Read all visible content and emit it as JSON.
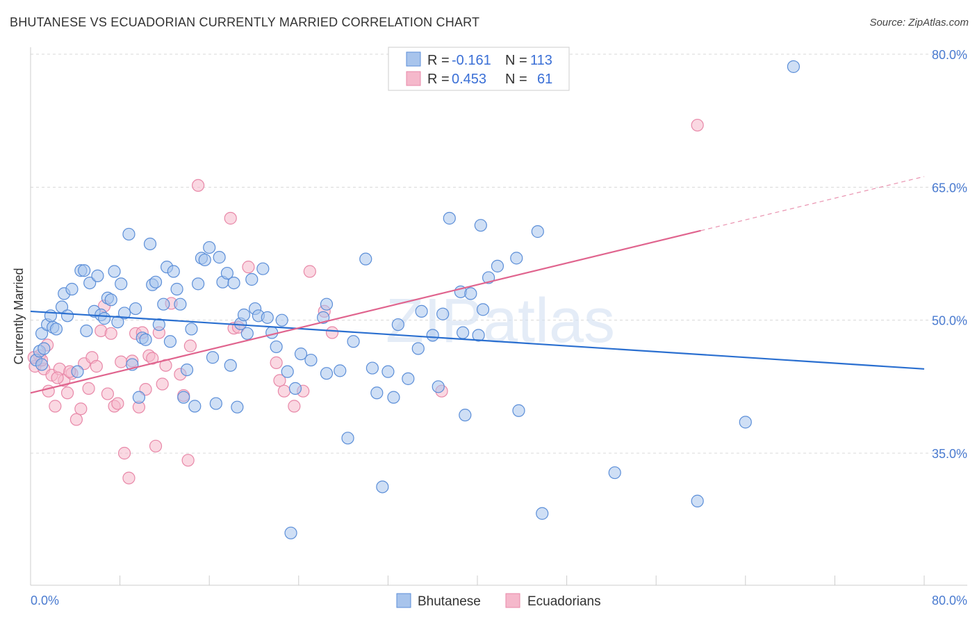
{
  "title": "BHUTANESE VS ECUADORIAN CURRENTLY MARRIED CORRELATION CHART",
  "source": "Source: ZipAtlas.com",
  "watermark": "ZIPatlas",
  "colors": {
    "bhutanese_fill": "#a8c4ec",
    "bhutanese_stroke": "#5b8ed8",
    "bhutanese_line": "#2a6fd0",
    "ecuadorian_fill": "#f5b8cb",
    "ecuadorian_stroke": "#e888a8",
    "ecuadorian_line": "#e0648e",
    "tick_color": "#4a7bd0",
    "grid": "#d8d8d8"
  },
  "legend": {
    "rows": [
      {
        "r_label": "R =",
        "r_value": "-0.161",
        "n_label": "N =",
        "n_value": "113"
      },
      {
        "r_label": "R =",
        "r_value": "0.453",
        "n_label": "N =",
        "n_value": "61"
      }
    ]
  },
  "chart_data": {
    "type": "scatter",
    "title": "BHUTANESE VS ECUADORIAN CURRENTLY MARRIED CORRELATION CHART",
    "xlabel": "",
    "ylabel": "Currently Married",
    "xlim": [
      0,
      80
    ],
    "ylim": [
      22,
      83
    ],
    "x_tick_labels": [
      "0.0%",
      "80.0%"
    ],
    "y_ticks": [
      35,
      50,
      65,
      80
    ],
    "y_tick_labels": [
      "35.0%",
      "50.0%",
      "65.0%",
      "80.0%"
    ],
    "grid": true,
    "legend_position": "bottom",
    "series": [
      {
        "name": "Bhutanese",
        "r": -0.161,
        "n": 113,
        "trend": {
          "x": [
            0,
            80
          ],
          "y": [
            51.0,
            44.5
          ],
          "dashed_from": null
        },
        "points": [
          [
            0.5,
            45.5
          ],
          [
            0.8,
            46.5
          ],
          [
            1.0,
            48.5
          ],
          [
            1.2,
            46.8
          ],
          [
            1.5,
            49.5
          ],
          [
            1.8,
            50.5
          ],
          [
            2.0,
            49.2
          ],
          [
            2.3,
            49.0
          ],
          [
            2.8,
            51.5
          ],
          [
            3.0,
            53.0
          ],
          [
            3.3,
            50.5
          ],
          [
            3.7,
            53.5
          ],
          [
            4.2,
            44.2
          ],
          [
            4.5,
            55.6
          ],
          [
            4.8,
            55.6
          ],
          [
            5.0,
            48.8
          ],
          [
            5.3,
            54.2
          ],
          [
            5.7,
            51.0
          ],
          [
            6.0,
            55.0
          ],
          [
            6.3,
            50.6
          ],
          [
            6.6,
            50.2
          ],
          [
            6.9,
            52.5
          ],
          [
            7.2,
            52.3
          ],
          [
            7.5,
            55.5
          ],
          [
            7.8,
            49.8
          ],
          [
            8.1,
            54.1
          ],
          [
            8.4,
            50.8
          ],
          [
            8.8,
            59.7
          ],
          [
            9.1,
            45.0
          ],
          [
            9.4,
            51.3
          ],
          [
            9.7,
            41.3
          ],
          [
            10.0,
            48.0
          ],
          [
            10.3,
            47.8
          ],
          [
            10.7,
            58.6
          ],
          [
            10.9,
            54.0
          ],
          [
            11.2,
            54.3
          ],
          [
            11.5,
            49.5
          ],
          [
            11.9,
            51.8
          ],
          [
            12.2,
            56.0
          ],
          [
            12.5,
            47.6
          ],
          [
            12.8,
            55.5
          ],
          [
            13.1,
            53.5
          ],
          [
            13.4,
            51.8
          ],
          [
            13.7,
            41.3
          ],
          [
            14.0,
            44.4
          ],
          [
            14.4,
            49.0
          ],
          [
            14.7,
            40.3
          ],
          [
            15.0,
            54.1
          ],
          [
            15.3,
            57.0
          ],
          [
            15.6,
            56.8
          ],
          [
            16.0,
            58.2
          ],
          [
            16.3,
            45.8
          ],
          [
            16.6,
            40.6
          ],
          [
            16.9,
            57.1
          ],
          [
            17.2,
            54.3
          ],
          [
            17.6,
            55.3
          ],
          [
            17.9,
            44.9
          ],
          [
            18.2,
            54.2
          ],
          [
            18.5,
            40.2
          ],
          [
            18.8,
            49.6
          ],
          [
            19.1,
            50.6
          ],
          [
            19.4,
            48.5
          ],
          [
            19.8,
            54.6
          ],
          [
            20.1,
            51.3
          ],
          [
            20.4,
            50.5
          ],
          [
            20.8,
            55.8
          ],
          [
            21.2,
            50.3
          ],
          [
            21.6,
            48.6
          ],
          [
            22.0,
            47.0
          ],
          [
            22.5,
            50.0
          ],
          [
            23.0,
            44.2
          ],
          [
            23.3,
            26.0
          ],
          [
            23.7,
            42.3
          ],
          [
            24.2,
            46.2
          ],
          [
            25.1,
            45.5
          ],
          [
            26.5,
            51.8
          ],
          [
            26.2,
            50.3
          ],
          [
            26.5,
            44.0
          ],
          [
            27.7,
            44.3
          ],
          [
            28.4,
            36.7
          ],
          [
            28.9,
            47.6
          ],
          [
            30.0,
            56.9
          ],
          [
            30.6,
            44.6
          ],
          [
            31.0,
            41.8
          ],
          [
            31.5,
            31.2
          ],
          [
            32.0,
            44.2
          ],
          [
            32.5,
            41.3
          ],
          [
            32.9,
            49.5
          ],
          [
            33.8,
            43.4
          ],
          [
            34.7,
            46.8
          ],
          [
            35.0,
            51.0
          ],
          [
            36.0,
            48.3
          ],
          [
            36.5,
            42.5
          ],
          [
            36.9,
            50.7
          ],
          [
            37.5,
            61.5
          ],
          [
            38.5,
            53.2
          ],
          [
            38.7,
            48.6
          ],
          [
            38.9,
            39.3
          ],
          [
            39.4,
            53.0
          ],
          [
            40.1,
            48.3
          ],
          [
            40.3,
            60.7
          ],
          [
            40.5,
            51.2
          ],
          [
            41.0,
            54.8
          ],
          [
            41.8,
            56.1
          ],
          [
            43.5,
            57.0
          ],
          [
            43.7,
            39.8
          ],
          [
            45.8,
            28.2
          ],
          [
            45.4,
            60.0
          ],
          [
            52.3,
            32.8
          ],
          [
            59.7,
            29.6
          ],
          [
            64.0,
            38.5
          ],
          [
            68.3,
            78.6
          ],
          [
            1.0,
            45.0
          ]
        ]
      },
      {
        "name": "Ecuadorians",
        "r": 0.453,
        "n": 61,
        "trend": {
          "x": [
            0,
            80
          ],
          "y": [
            41.8,
            66.2
          ],
          "dashed_from": 60
        },
        "points": [
          [
            0.4,
            44.8
          ],
          [
            0.8,
            46.0
          ],
          [
            1.2,
            44.5
          ],
          [
            1.6,
            42.0
          ],
          [
            1.9,
            43.8
          ],
          [
            2.2,
            40.3
          ],
          [
            2.6,
            44.5
          ],
          [
            3.0,
            43.2
          ],
          [
            3.3,
            41.8
          ],
          [
            3.7,
            44.0
          ],
          [
            4.1,
            38.8
          ],
          [
            4.5,
            40.0
          ],
          [
            4.8,
            45.1
          ],
          [
            5.2,
            42.3
          ],
          [
            5.5,
            45.8
          ],
          [
            5.9,
            44.8
          ],
          [
            6.3,
            48.8
          ],
          [
            6.6,
            51.6
          ],
          [
            6.9,
            41.7
          ],
          [
            7.2,
            48.5
          ],
          [
            7.5,
            40.3
          ],
          [
            7.8,
            40.6
          ],
          [
            8.1,
            45.3
          ],
          [
            8.4,
            35.0
          ],
          [
            8.8,
            32.2
          ],
          [
            9.1,
            45.4
          ],
          [
            9.4,
            48.5
          ],
          [
            9.7,
            40.2
          ],
          [
            10.0,
            48.6
          ],
          [
            10.3,
            42.2
          ],
          [
            10.6,
            46.0
          ],
          [
            10.9,
            45.7
          ],
          [
            11.2,
            35.8
          ],
          [
            11.5,
            48.6
          ],
          [
            11.8,
            42.8
          ],
          [
            12.1,
            44.9
          ],
          [
            12.6,
            51.9
          ],
          [
            13.4,
            43.9
          ],
          [
            13.7,
            41.5
          ],
          [
            14.1,
            34.2
          ],
          [
            14.3,
            47.1
          ],
          [
            15.0,
            65.2
          ],
          [
            17.9,
            61.5
          ],
          [
            18.2,
            49.1
          ],
          [
            18.6,
            49.2
          ],
          [
            19.5,
            56.0
          ],
          [
            22.0,
            45.2
          ],
          [
            22.3,
            43.2
          ],
          [
            22.7,
            42.0
          ],
          [
            23.6,
            40.3
          ],
          [
            24.4,
            42.0
          ],
          [
            25.0,
            55.5
          ],
          [
            26.3,
            51.0
          ],
          [
            27.0,
            48.6
          ],
          [
            36.8,
            42.0
          ],
          [
            59.7,
            72.0
          ],
          [
            1.0,
            45.5
          ],
          [
            0.3,
            45.8
          ],
          [
            1.5,
            47.2
          ],
          [
            2.4,
            43.5
          ],
          [
            3.5,
            44.2
          ]
        ]
      }
    ]
  },
  "bottom_legend": [
    {
      "label": "Bhutanese"
    },
    {
      "label": "Ecuadorians"
    }
  ]
}
